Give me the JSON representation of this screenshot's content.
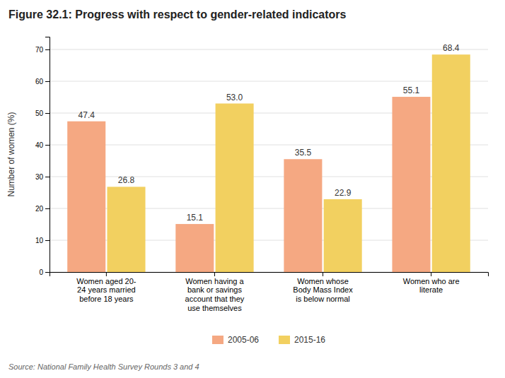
{
  "chart_data": {
    "type": "bar",
    "title": "Figure 32.1: Progress with respect to gender-related indicators",
    "y_label": "Number of women (%)",
    "categories": [
      "Women aged 20-\n24 years married\nbefore 18 years",
      "Women having a\nbank or savings\naccount that they\nuse themselves",
      "Women whose\nBody Mass Index\nis below normal",
      "Women who are\nliterate"
    ],
    "series": [
      {
        "name": "2005-06",
        "color": "#F5A882",
        "values": [
          47.4,
          15.1,
          35.5,
          55.1
        ]
      },
      {
        "name": "2015-16",
        "color": "#F2D060",
        "values": [
          26.8,
          53.0,
          22.9,
          68.4
        ],
        "value_labels": [
          "26.8",
          "53.0",
          "22.9",
          "68.4"
        ]
      }
    ],
    "ylim": [
      0,
      74
    ],
    "yticks": [
      0,
      10,
      20,
      30,
      40,
      50,
      60,
      70
    ],
    "grid": true,
    "legend": "bottom",
    "data_labels": true,
    "annotations": [
      "Source: National Family Health Survey Rounds 3 and 4"
    ]
  }
}
